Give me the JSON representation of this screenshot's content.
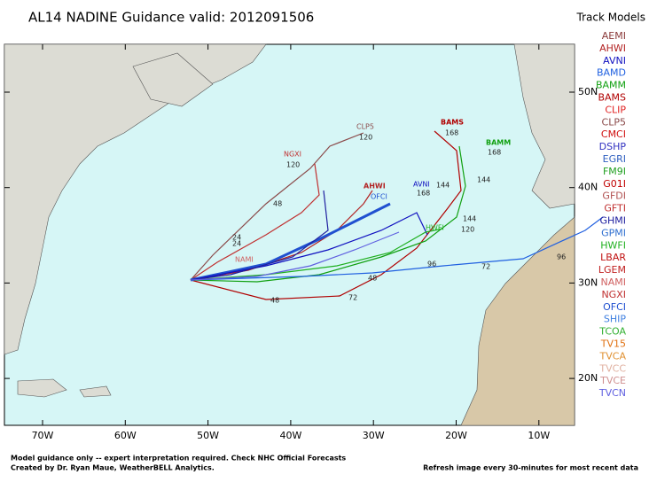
{
  "header": {
    "title": "AL14 NADINE Guidance valid: 2012091506",
    "legend_title": "Track Models"
  },
  "legend": [
    {
      "name": "AEMI",
      "color": "#8b3a3a"
    },
    {
      "name": "AHWI",
      "color": "#b22222"
    },
    {
      "name": "AVNI",
      "color": "#1010c0"
    },
    {
      "name": "BAMD",
      "color": "#2060e0"
    },
    {
      "name": "BAMM",
      "color": "#10a010"
    },
    {
      "name": "BAMS",
      "color": "#b00000"
    },
    {
      "name": "CLIP",
      "color": "#e02020"
    },
    {
      "name": "CLP5",
      "color": "#8b4a4a"
    },
    {
      "name": "CMCI",
      "color": "#d01010"
    },
    {
      "name": "DSHP",
      "color": "#3030c0"
    },
    {
      "name": "EGRI",
      "color": "#3060c0"
    },
    {
      "name": "FM9I",
      "color": "#20a020"
    },
    {
      "name": "G01I",
      "color": "#c00000"
    },
    {
      "name": "GFDI",
      "color": "#b05050"
    },
    {
      "name": "GFTI",
      "color": "#c03030"
    },
    {
      "name": "GHMI",
      "color": "#2020a0"
    },
    {
      "name": "GPMI",
      "color": "#3070d0"
    },
    {
      "name": "HWFI",
      "color": "#20b020"
    },
    {
      "name": "LBAR",
      "color": "#c01010"
    },
    {
      "name": "LGEM",
      "color": "#c02020"
    },
    {
      "name": "NAMI",
      "color": "#d06060"
    },
    {
      "name": "NGXI",
      "color": "#c03030"
    },
    {
      "name": "OFCI",
      "color": "#2050d0"
    },
    {
      "name": "SHIP",
      "color": "#4080e0"
    },
    {
      "name": "TCOA",
      "color": "#30b030"
    },
    {
      "name": "TV15",
      "color": "#e07010"
    },
    {
      "name": "TVCA",
      "color": "#e09030"
    },
    {
      "name": "TVCC",
      "color": "#e0b0a0"
    },
    {
      "name": "TVCE",
      "color": "#d09090"
    },
    {
      "name": "TVCN",
      "color": "#6060e0"
    }
  ],
  "map": {
    "lon_labels": [
      "70W",
      "60W",
      "50W",
      "40W",
      "30W",
      "20W",
      "10W"
    ],
    "lat_labels": [
      "50N",
      "40N",
      "30N",
      "20N"
    ],
    "track_labels": [
      "BAMS",
      "168",
      "BAMM",
      "168",
      "144",
      "CLP5",
      "120",
      "NGXI",
      "120",
      "AHWI",
      "OFCI",
      "AVNI",
      "168",
      "144",
      "HWFI",
      "144",
      "120",
      "96",
      "72",
      "48",
      "48",
      "72",
      "NAMI",
      "24",
      "24",
      "48",
      "96"
    ]
  },
  "footer": {
    "left_1": "Model guidance only -- expert interpretation required.  Check NHC Official Forecasts",
    "left_2": "Created by Dr. Ryan Maue, WeatherBELL Analytics.",
    "right": "Refresh image every 30-minutes for most recent data"
  }
}
